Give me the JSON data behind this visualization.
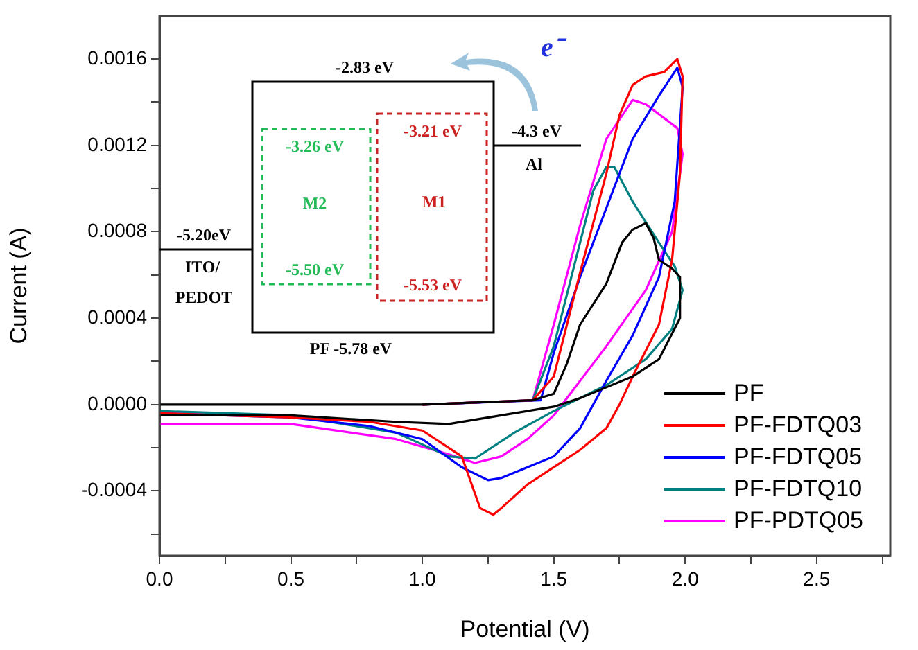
{
  "chart_data": {
    "type": "line",
    "xlabel": "Potential (V)",
    "ylabel": "Current (A)",
    "xlim": [
      0,
      2.78
    ],
    "ylim": [
      -0.0007,
      0.0018
    ],
    "xticks": [
      {
        "value": 0,
        "label": "0.0"
      },
      {
        "value": 0.25,
        "label": null
      },
      0.5,
      {
        "value": 0.75,
        "label": null
      },
      {
        "value": 1,
        "label": "1.0"
      },
      {
        "value": 1.25,
        "label": null
      },
      1.5,
      {
        "value": 1.75,
        "label": null
      },
      {
        "value": 2,
        "label": "2.0"
      },
      {
        "value": 2.25,
        "label": null
      },
      2.5,
      {
        "value": 2.75,
        "label": null
      }
    ],
    "yticks": [
      {
        "value": -0.0006,
        "label": null
      },
      -0.0004,
      {
        "value": -0.0002,
        "label": null
      },
      {
        "value": 0,
        "label": "0.0000"
      },
      {
        "value": 0.0002,
        "label": null
      },
      0.0004,
      {
        "value": 0.0006,
        "label": null
      },
      0.0008,
      {
        "value": 0.001,
        "label": null
      },
      0.0012,
      {
        "value": 0.0014,
        "label": null
      },
      0.0016
    ],
    "grid": false,
    "legend": "bottom right",
    "series": [
      {
        "name": "PF",
        "color": "#000000",
        "x": [
          0,
          0.5,
          1,
          1.42,
          1.5,
          1.55,
          1.6,
          1.7,
          1.76,
          1.8,
          1.85,
          1.88,
          1.9,
          1.95,
          1.98,
          1.98,
          1.9,
          1.8,
          1.7,
          1.6,
          1.5,
          1.3,
          1.1,
          0.9,
          0.5,
          0
        ],
        "values": [
          0,
          0,
          0,
          2e-05,
          5e-05,
          0.00019,
          0.00037,
          0.00056,
          0.00075,
          0.00081,
          0.00084,
          0.00077,
          0.00067,
          0.00063,
          0.00059,
          0.0004,
          0.00021,
          0.00013,
          8e-05,
          3e-05,
          -1e-05,
          -5e-05,
          -9e-05,
          -8e-05,
          -5e-05,
          -5e-05
        ]
      },
      {
        "name": "PF-FDTQ03",
        "color": "#ff0000",
        "x": [
          1,
          1.42,
          1.5,
          1.6,
          1.7,
          1.75,
          1.8,
          1.85,
          1.92,
          1.97,
          1.99,
          1.98,
          1.95,
          1.9,
          1.8,
          1.75,
          1.7,
          1.6,
          1.5,
          1.4,
          1.3,
          1.27,
          1.22,
          1.15,
          1,
          0.8,
          0.5,
          0
        ],
        "values": [
          0,
          2e-05,
          0.00013,
          0.00061,
          0.00107,
          0.00134,
          0.00148,
          0.00152,
          0.00154,
          0.0016,
          0.00152,
          0.00107,
          0.00067,
          0.00037,
          0.00013,
          0,
          -0.00011,
          -0.00021,
          -0.00029,
          -0.00037,
          -0.00048,
          -0.00051,
          -0.00048,
          -0.00024,
          -0.00012,
          -8e-05,
          -6e-05,
          -4e-05
        ]
      },
      {
        "name": "PF-FDTQ05",
        "color": "#0000ff",
        "x": [
          1,
          1.45,
          1.5,
          1.6,
          1.7,
          1.8,
          1.9,
          1.97,
          1.99,
          1.96,
          1.9,
          1.8,
          1.7,
          1.6,
          1.5,
          1.4,
          1.3,
          1.25,
          1.15,
          1,
          0.8,
          0.5,
          0
        ],
        "values": [
          0,
          2e-05,
          0.00024,
          0.00059,
          0.00091,
          0.00123,
          0.00143,
          0.00156,
          0.00147,
          0.00094,
          0.00059,
          0.00032,
          0.00011,
          -0.00011,
          -0.00024,
          -0.00029,
          -0.00034,
          -0.00035,
          -0.00029,
          -0.00016,
          -0.0001,
          -6e-05,
          -4e-05
        ]
      },
      {
        "name": "PF-FDTQ10",
        "color": "#008080",
        "x": [
          1,
          1.42,
          1.5,
          1.6,
          1.65,
          1.7,
          1.73,
          1.8,
          1.9,
          1.96,
          1.99,
          1.95,
          1.85,
          1.7,
          1.5,
          1.35,
          1.2,
          1.1,
          0.9,
          0.5,
          0
        ],
        "values": [
          0,
          2e-05,
          0.00027,
          0.00075,
          0.00099,
          0.0011,
          0.0011,
          0.00094,
          0.00075,
          0.00064,
          0.00053,
          0.00035,
          0.00021,
          9e-05,
          -3e-05,
          -0.00013,
          -0.00025,
          -0.00024,
          -0.00013,
          -5e-05,
          -3e-05
        ]
      },
      {
        "name": "PF-PDTQ05",
        "color": "#ff00ff",
        "x": [
          1,
          1.42,
          1.5,
          1.6,
          1.7,
          1.8,
          1.85,
          1.97,
          1.99,
          1.95,
          1.85,
          1.7,
          1.5,
          1.4,
          1.3,
          1.2,
          1.1,
          0.9,
          0.5,
          0
        ],
        "values": [
          0,
          2e-05,
          0.00037,
          0.00083,
          0.00123,
          0.00141,
          0.00139,
          0.00128,
          0.00116,
          0.0008,
          0.00053,
          0.00027,
          -5e-05,
          -0.00016,
          -0.00024,
          -0.00027,
          -0.00023,
          -0.00016,
          -9e-05,
          -9e-05
        ]
      }
    ],
    "annotations": [
      "-2.83 eV",
      "-3.26 eV",
      "M2",
      "-5.50 eV",
      "-3.21 eV",
      "M1",
      "-5.53 eV",
      "-4.3 eV",
      "Al",
      "-5.20eV",
      "ITO/",
      "PEDOT",
      "PF -5.78 eV",
      "e⁻"
    ]
  }
}
